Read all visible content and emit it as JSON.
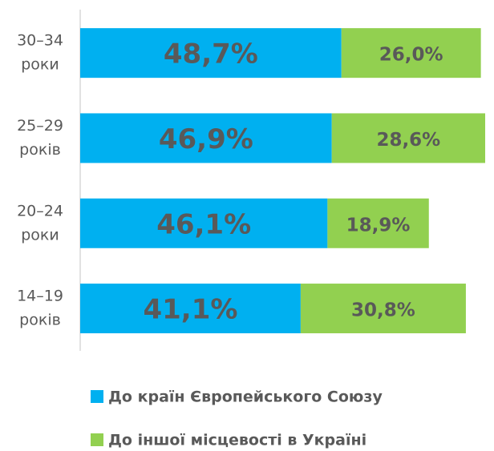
{
  "chart_data": {
    "type": "stacked-bar",
    "categories": [
      [
        "30–34",
        "роки"
      ],
      [
        "25–29",
        "років"
      ],
      [
        "20–24",
        "роки"
      ],
      [
        "14–19",
        "років"
      ]
    ],
    "series": [
      {
        "name": "До країн Європейського Союзу",
        "color": "#00b0f0",
        "values": [
          48.7,
          46.9,
          46.1,
          41.1
        ],
        "value_labels": [
          "48,7%",
          "46,9%",
          "46,1%",
          "41,1%"
        ]
      },
      {
        "name": "До іншої місцевості в Україні",
        "color": "#92d050",
        "values": [
          26.0,
          28.6,
          18.9,
          30.8
        ],
        "value_labels": [
          "26,0%",
          "28,6%",
          "18,9%",
          "30,8%"
        ]
      }
    ],
    "legend": "bottom"
  }
}
